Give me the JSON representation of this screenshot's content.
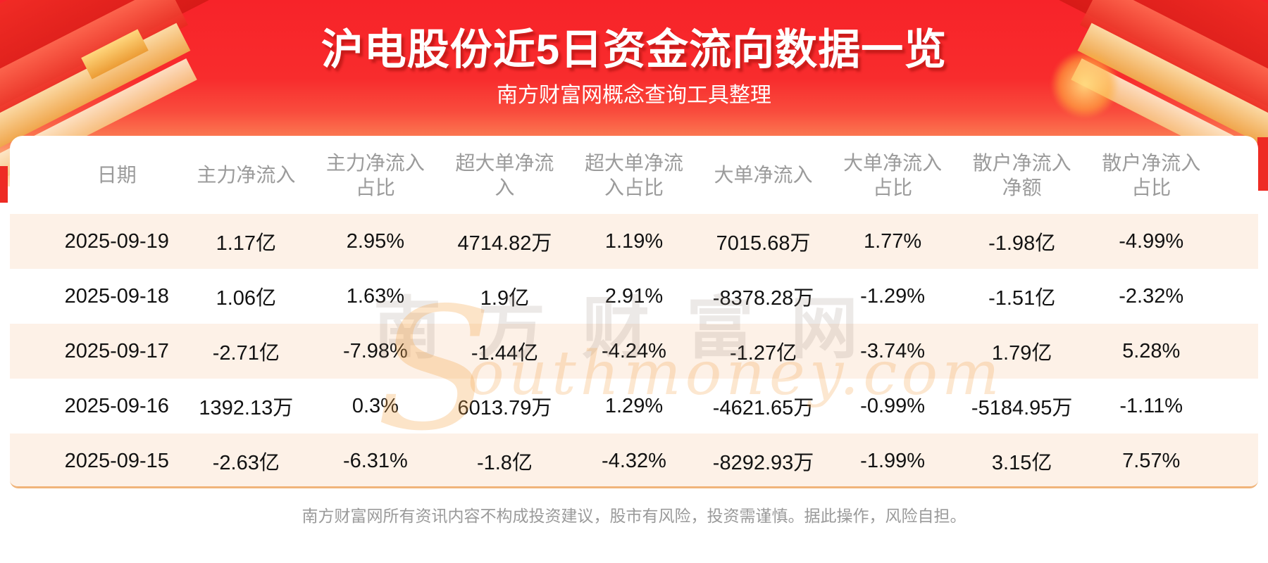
{
  "header": {
    "title": "沪电股份近5日资金流向数据一览",
    "subtitle": "南方财富网概念查询工具整理"
  },
  "chart_data": {
    "type": "table",
    "title": "沪电股份近5日资金流向数据一览",
    "subtitle": "南方财富网概念查询工具整理",
    "columns": [
      "日期",
      "主力净流入",
      "主力净流入占比",
      "超大单净流入",
      "超大单净流入占比",
      "大单净流入",
      "大单净流入占比",
      "散户净流入净额",
      "散户净流入占比"
    ],
    "rows": [
      [
        "2025-09-19",
        "1.17亿",
        "2.95%",
        "4714.82万",
        "1.19%",
        "7015.68万",
        "1.77%",
        "-1.98亿",
        "-4.99%"
      ],
      [
        "2025-09-18",
        "1.06亿",
        "1.63%",
        "1.9亿",
        "2.91%",
        "-8378.28万",
        "-1.29%",
        "-1.51亿",
        "-2.32%"
      ],
      [
        "2025-09-17",
        "-2.71亿",
        "-7.98%",
        "-1.44亿",
        "-4.24%",
        "-1.27亿",
        "-3.74%",
        "1.79亿",
        "5.28%"
      ],
      [
        "2025-09-16",
        "1392.13万",
        "0.3%",
        "6013.79万",
        "1.29%",
        "-4621.65万",
        "-0.99%",
        "-5184.95万",
        "-1.11%"
      ],
      [
        "2025-09-15",
        "-2.63亿",
        "-6.31%",
        "-1.8亿",
        "-4.32%",
        "-8292.93万",
        "-1.99%",
        "3.15亿",
        "7.57%"
      ]
    ],
    "layout_hints": {
      "striped_rows": "odd rows cream #fdf1e7",
      "header_lines": 2,
      "grid": "off"
    }
  },
  "table_display": {
    "headers": [
      "日期",
      "主力净流入",
      "主力净流入\n占比",
      "超大单净流\n入",
      "超大单净流\n入占比",
      "大单净流入",
      "大单净流入\n占比",
      "散户净流入\n净额",
      "散户净流入\n占比"
    ]
  },
  "watermark": {
    "cn": "南方财富网",
    "en_initial": "S",
    "en_rest": "outhmoney.com"
  },
  "footer": {
    "disclaimer": "南方财富网所有资讯内容不构成投资建议，股市有风险，投资需谨慎。据此操作，风险自担。"
  },
  "colors": {
    "banner_red_top": "#f72329",
    "banner_peach_bottom": "#fee0b8",
    "stripe_row": "#fdf1e7",
    "card_bottom_line": "#f0b47a",
    "header_text": "#9b9b9b",
    "data_text": "#121212",
    "accent_gold": "#f0a64c",
    "title_text": "#ffffff"
  }
}
